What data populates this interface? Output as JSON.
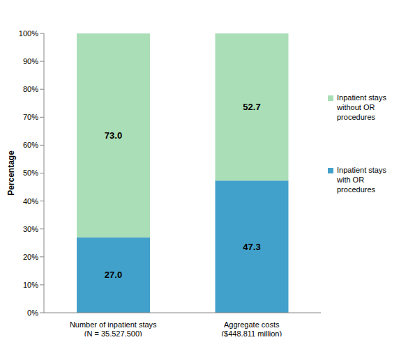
{
  "chart_data": {
    "type": "bar",
    "stacked": true,
    "data_labels": true,
    "grid": false,
    "legend": "right",
    "y_label": "Percentage",
    "categories": [
      "Number of inpatient stays\n(N = 35,527,500)",
      "Aggregate costs\n($448,811 million)"
    ],
    "series": [
      {
        "name": "Inpatient stays with OR procedures",
        "color": "#42a1ca",
        "values": [
          27.0,
          47.3
        ],
        "value_labels": [
          "27.0",
          "47.3"
        ]
      },
      {
        "name": "Inpatient stays without OR procedures",
        "color": "#aadeb7",
        "values": [
          73.0,
          52.7
        ],
        "value_labels": [
          "73.0",
          "52.7"
        ]
      }
    ],
    "ylim": [
      0,
      100
    ],
    "yticks": [
      {
        "value": 0,
        "label": "0%"
      },
      {
        "value": 10,
        "label": "10%"
      },
      {
        "value": 20,
        "label": "20%"
      },
      {
        "value": 30,
        "label": "30%"
      },
      {
        "value": 40,
        "label": "40%"
      },
      {
        "value": 50,
        "label": "50%"
      },
      {
        "value": 60,
        "label": "60%"
      },
      {
        "value": 70,
        "label": "70%"
      },
      {
        "value": 80,
        "label": "80%"
      },
      {
        "value": 90,
        "label": "90%"
      },
      {
        "value": 100,
        "label": "100%"
      }
    ]
  }
}
